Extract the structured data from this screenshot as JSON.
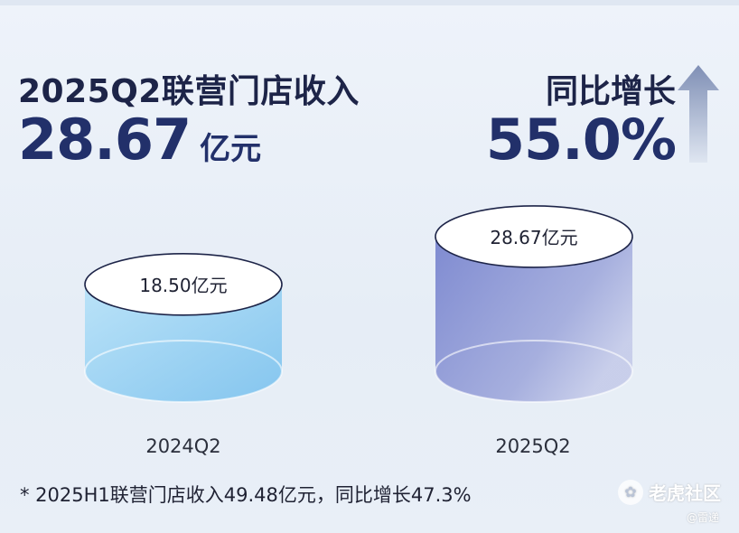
{
  "header": {
    "title": "2025Q2联营门店收入",
    "value": "28.67",
    "unit": "亿元"
  },
  "growth": {
    "label": "同比增长",
    "value": "55.0%",
    "icon": "arrow-up-icon"
  },
  "chart_data": {
    "type": "bar",
    "title": "",
    "categories": [
      "2024Q2",
      "2025Q2"
    ],
    "values": [
      18.5,
      28.67
    ],
    "value_labels": [
      "18.50亿元",
      "28.67亿元"
    ],
    "style": "3d-cylinder",
    "colors": [
      "#8ecff3",
      "#8a93d6"
    ]
  },
  "footnote": {
    "text": "*  2025H1联营门店收入49.48亿元，同比增长47.3%"
  },
  "watermark": {
    "brand": "老虎社区",
    "sub": "@雷递",
    "icon": "tiger-logo-icon"
  }
}
